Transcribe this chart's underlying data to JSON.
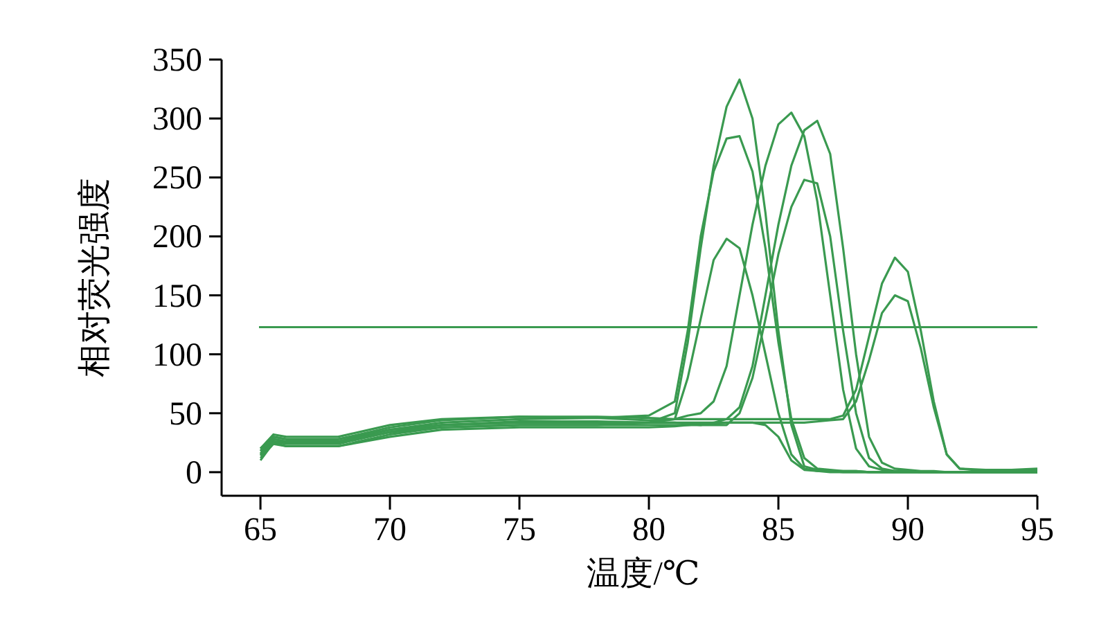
{
  "chart_data": {
    "type": "line",
    "xlabel": "温度/℃",
    "ylabel": "相对荧光强度",
    "xlim": [
      63.5,
      95
    ],
    "ylim": [
      -20,
      350
    ],
    "xticks": [
      65,
      70,
      75,
      80,
      85,
      90,
      95
    ],
    "yticks": [
      0,
      50,
      100,
      150,
      200,
      250,
      300,
      350
    ],
    "grid": false,
    "marker": "none",
    "line_style": "solid",
    "x": [
      65,
      65.5,
      66,
      68,
      70,
      72,
      75,
      78,
      80,
      81,
      81.5,
      82,
      82.5,
      83,
      83.5,
      84,
      84.5,
      85,
      85.5,
      86,
      86.5,
      87,
      87.5,
      88,
      88.5,
      89,
      89.5,
      90,
      90.5,
      91,
      91.5,
      92,
      93,
      94,
      95
    ],
    "series": [
      {
        "color": "#3a9a50",
        "values": [
          10,
          25,
          22,
          22,
          32,
          38,
          40,
          40,
          42,
          50,
          110,
          190,
          260,
          310,
          333,
          300,
          220,
          120,
          40,
          5,
          2,
          1,
          1,
          1,
          0,
          0,
          0,
          0,
          0,
          0,
          0,
          0,
          0,
          0,
          0
        ]
      },
      {
        "color": "#3a9a50",
        "values": [
          15,
          28,
          26,
          26,
          36,
          42,
          45,
          46,
          48,
          60,
          120,
          200,
          255,
          283,
          285,
          255,
          190,
          110,
          45,
          12,
          3,
          2,
          1,
          1,
          0,
          0,
          0,
          0,
          0,
          0,
          0,
          0,
          0,
          0,
          0
        ]
      },
      {
        "color": "#3a9a50",
        "values": [
          20,
          30,
          28,
          28,
          36,
          40,
          42,
          42,
          42,
          45,
          80,
          130,
          180,
          198,
          190,
          150,
          100,
          50,
          15,
          3,
          1,
          1,
          0,
          0,
          0,
          0,
          0,
          0,
          0,
          0,
          0,
          0,
          0,
          0,
          0
        ]
      },
      {
        "color": "#3a9a50",
        "values": [
          18,
          30,
          28,
          28,
          38,
          44,
          47,
          46,
          44,
          45,
          48,
          50,
          60,
          90,
          150,
          210,
          260,
          295,
          305,
          285,
          230,
          150,
          70,
          20,
          5,
          2,
          1,
          1,
          0,
          0,
          0,
          0,
          0,
          0,
          0
        ]
      },
      {
        "color": "#3a9a50",
        "values": [
          12,
          24,
          22,
          22,
          30,
          36,
          38,
          38,
          38,
          39,
          40,
          40,
          42,
          45,
          55,
          90,
          150,
          210,
          260,
          290,
          298,
          270,
          190,
          100,
          30,
          8,
          3,
          2,
          1,
          1,
          0,
          0,
          0,
          0,
          0
        ]
      },
      {
        "color": "#3a9a50",
        "values": [
          16,
          26,
          25,
          25,
          34,
          40,
          43,
          43,
          42,
          42,
          41,
          40,
          40,
          40,
          50,
          80,
          130,
          185,
          225,
          248,
          245,
          200,
          120,
          50,
          12,
          3,
          1,
          1,
          0,
          0,
          0,
          0,
          0,
          0,
          0
        ]
      },
      {
        "color": "#3a9a50",
        "values": [
          20,
          32,
          30,
          30,
          40,
          45,
          47,
          47,
          46,
          45,
          45,
          45,
          45,
          45,
          45,
          45,
          45,
          45,
          45,
          45,
          45,
          45,
          48,
          70,
          115,
          160,
          182,
          170,
          120,
          60,
          15,
          3,
          2,
          2,
          3
        ]
      },
      {
        "color": "#3a9a50",
        "values": [
          14,
          26,
          24,
          24,
          34,
          40,
          42,
          42,
          42,
          42,
          42,
          42,
          42,
          42,
          42,
          42,
          42,
          42,
          42,
          42,
          43,
          44,
          45,
          60,
          95,
          135,
          150,
          145,
          105,
          55,
          15,
          3,
          1,
          1,
          2
        ]
      },
      {
        "color": "#3a9a50",
        "values": [
          18,
          28,
          26,
          26,
          34,
          38,
          40,
          40,
          40,
          40,
          40,
          41,
          41,
          42,
          42,
          42,
          40,
          30,
          10,
          2,
          1,
          0,
          0,
          0,
          0,
          0,
          0,
          0,
          0,
          0,
          0,
          0,
          0,
          0,
          0
        ]
      }
    ],
    "ref_lines": [
      {
        "axis": "y",
        "value": 123,
        "color": "#3a9a50"
      }
    ]
  }
}
